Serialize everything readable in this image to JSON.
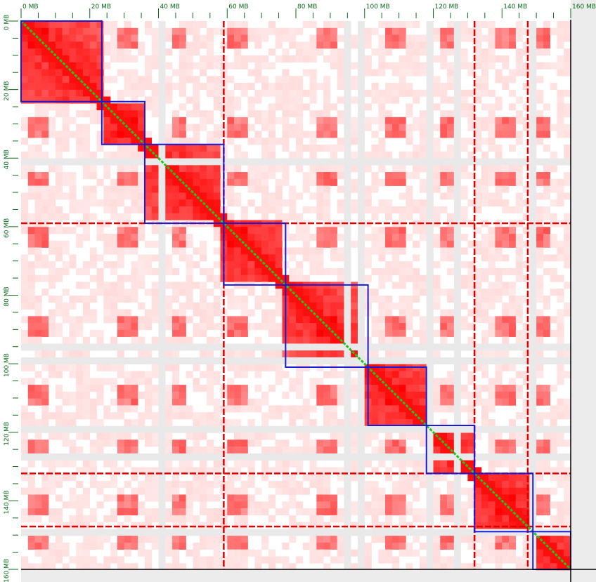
{
  "chart_data": {
    "type": "heatmap",
    "title": "",
    "xlabel": "",
    "ylabel": "",
    "axis_unit": "MB",
    "xlim": [
      0,
      160
    ],
    "ylim": [
      0,
      160
    ],
    "x_tick_labels": [
      {
        "value": 0,
        "label": "0 MB"
      },
      {
        "value": 20,
        "label": "20 MB"
      },
      {
        "value": 40,
        "label": "40 MB"
      },
      {
        "value": 60,
        "label": "60 MB"
      },
      {
        "value": 80,
        "label": "80 MB"
      },
      {
        "value": 100,
        "label": "100 MB"
      },
      {
        "value": 120,
        "label": "120 MB"
      },
      {
        "value": 140,
        "label": "140 MB"
      },
      {
        "value": 160,
        "label": "160 MB"
      }
    ],
    "y_tick_labels": [
      {
        "value": 0,
        "label": "0 MB"
      },
      {
        "value": 20,
        "label": "20 MB"
      },
      {
        "value": 40,
        "label": "40 MB"
      },
      {
        "value": 60,
        "label": "60 MB"
      },
      {
        "value": 80,
        "label": "80 MB"
      },
      {
        "value": 100,
        "label": "100 MB"
      },
      {
        "value": 120,
        "label": "120 MB"
      },
      {
        "value": 140,
        "label": "140 MB"
      },
      {
        "value": 160,
        "label": "160 MB"
      }
    ],
    "domains_mb": [
      [
        0,
        23.5
      ],
      [
        23.5,
        36
      ],
      [
        36,
        59
      ],
      [
        59,
        77
      ],
      [
        77,
        101
      ],
      [
        101,
        118
      ],
      [
        118,
        132
      ],
      [
        132,
        149
      ],
      [
        149,
        160
      ]
    ],
    "strong_rows_mb": [
      59,
      132,
      147.5
    ],
    "strong_cols_mb": [
      59,
      132,
      147.5
    ],
    "enriched_bands_mb": [
      5,
      31,
      46,
      63,
      89,
      109,
      125,
      141,
      152
    ],
    "colors": {
      "background": "#ffffff",
      "missing": "#e9e9e9",
      "contact_max": "#e00000",
      "domain_border": "#1a1ad6",
      "diagonal": "#22c41e",
      "axis_text": "#0a6a1a",
      "gutter": "#ececec"
    }
  }
}
